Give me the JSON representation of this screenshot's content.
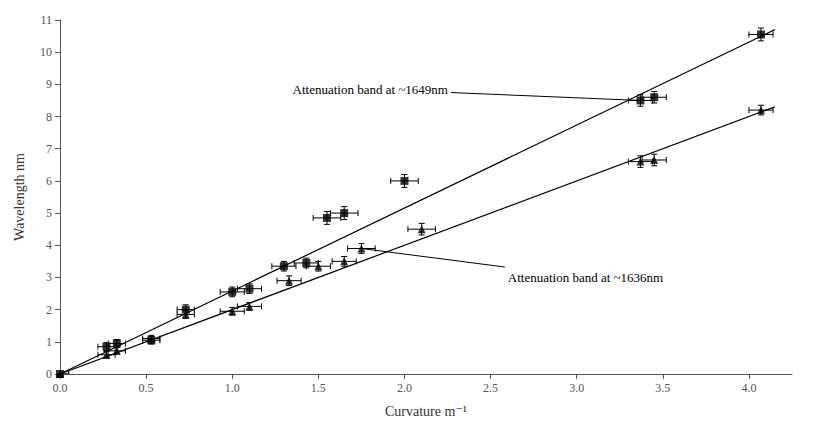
{
  "chart_data": {
    "type": "scatter",
    "xlabel": "Curvature m⁻¹",
    "ylabel": "Wavelength nm",
    "xlim": [
      0,
      4.25
    ],
    "ylim": [
      0,
      11
    ],
    "xticks": [
      {
        "value": 0,
        "label": "0.0"
      },
      0.5,
      {
        "value": 1,
        "label": "1.0"
      },
      1.5,
      {
        "value": 2,
        "label": "2.0"
      },
      2.5,
      {
        "value": 3,
        "label": "3.0"
      },
      3.5,
      {
        "value": 4,
        "label": "4.0"
      }
    ],
    "yticks": [
      0,
      1,
      2,
      3,
      4,
      5,
      6,
      7,
      8,
      9,
      10,
      11
    ],
    "grid": false,
    "series": [
      {
        "type": "scatter",
        "marker": "square",
        "color": "#000000",
        "x": [
          0.0,
          0.27,
          0.33,
          0.53,
          0.73,
          1.0,
          1.1,
          1.3,
          1.43,
          1.55,
          1.65,
          2.0,
          3.37,
          3.45,
          4.07
        ],
        "values": [
          0.0,
          0.85,
          0.95,
          1.05,
          2.0,
          2.55,
          2.65,
          3.35,
          3.45,
          4.85,
          5.0,
          6.0,
          8.5,
          8.6,
          10.55
        ],
        "xerr": [
          0.05,
          0.05,
          0.05,
          0.05,
          0.05,
          0.07,
          0.07,
          0.07,
          0.07,
          0.08,
          0.08,
          0.08,
          0.07,
          0.07,
          0.07
        ],
        "yerr": [
          0.0,
          0.12,
          0.12,
          0.12,
          0.15,
          0.15,
          0.15,
          0.15,
          0.15,
          0.2,
          0.2,
          0.2,
          0.18,
          0.18,
          0.2
        ]
      },
      {
        "type": "scatter",
        "marker": "triangle",
        "color": "#000000",
        "x": [
          0.0,
          0.27,
          0.33,
          0.53,
          0.73,
          1.0,
          1.1,
          1.33,
          1.5,
          1.65,
          1.75,
          2.1,
          3.37,
          3.45,
          4.07
        ],
        "values": [
          0.0,
          0.6,
          0.72,
          1.1,
          1.85,
          1.95,
          2.1,
          2.9,
          3.35,
          3.5,
          3.9,
          4.5,
          6.6,
          6.65,
          8.2
        ],
        "xerr": [
          0.05,
          0.05,
          0.05,
          0.05,
          0.05,
          0.07,
          0.07,
          0.07,
          0.07,
          0.07,
          0.08,
          0.08,
          0.07,
          0.07,
          0.07
        ],
        "yerr": [
          0.0,
          0.1,
          0.1,
          0.1,
          0.12,
          0.12,
          0.12,
          0.15,
          0.15,
          0.15,
          0.15,
          0.18,
          0.18,
          0.18,
          0.15
        ]
      },
      {
        "type": "line",
        "color": "#000000",
        "x": [
          0.0,
          4.15
        ],
        "values": [
          0.0,
          10.7
        ]
      },
      {
        "type": "line",
        "color": "#000000",
        "x": [
          0.0,
          4.15
        ],
        "values": [
          0.0,
          8.3
        ]
      }
    ],
    "annotations": [
      {
        "text": "Attenuation band at ~1649nm",
        "xy": [
          3.37,
          8.5
        ],
        "xytext": [
          1.35,
          8.85
        ]
      },
      {
        "text": "Attenuation band at ~1636nm",
        "xy": [
          1.75,
          3.9
        ],
        "xytext": [
          2.6,
          3.0
        ]
      }
    ]
  }
}
